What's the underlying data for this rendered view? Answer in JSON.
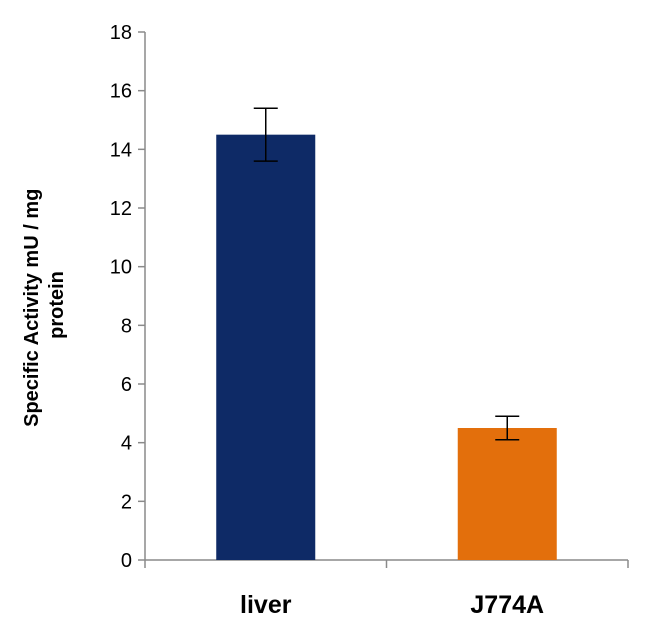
{
  "chart_data": {
    "type": "bar",
    "categories": [
      "liver",
      "J774A"
    ],
    "values": [
      14.5,
      4.5
    ],
    "errors": [
      0.9,
      0.4
    ],
    "ylabel_lines": [
      "Specific Activity mU / mg",
      "protein"
    ],
    "xlabel": "",
    "ylim": [
      0,
      18
    ],
    "yticks": [
      0,
      2,
      4,
      6,
      8,
      10,
      12,
      14,
      16,
      18
    ],
    "colors": [
      "#0e2a66",
      "#e36f0c"
    ],
    "grid": false,
    "legend": "none"
  }
}
